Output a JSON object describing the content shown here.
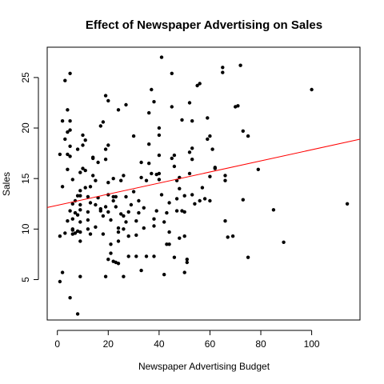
{
  "chart_data": {
    "type": "scatter",
    "title": "Effect of Newspaper Advertising on Sales",
    "xlabel": "Newspaper Advertising Budget",
    "ylabel": "Sales",
    "xlim": [
      -4,
      119
    ],
    "ylim": [
      1.0,
      28.0
    ],
    "x_ticks": [
      0,
      20,
      40,
      60,
      80,
      100
    ],
    "y_ticks": [
      5,
      10,
      15,
      20,
      25
    ],
    "grid": false,
    "legend": "none",
    "point_color": "#000000",
    "regression_line": {
      "intercept": 12.35,
      "slope": 0.055,
      "color": "#ff0000"
    },
    "points": [
      [
        1,
        17.4
      ],
      [
        2,
        20.7
      ],
      [
        2,
        14.2
      ],
      [
        3,
        18.9
      ],
      [
        3,
        24.7
      ],
      [
        4,
        21.8
      ],
      [
        4,
        19.6
      ],
      [
        5,
        25.4
      ],
      [
        4,
        17.4
      ],
      [
        4,
        15.9
      ],
      [
        5,
        20.7
      ],
      [
        5,
        19.8
      ],
      [
        5,
        18.2
      ],
      [
        5,
        17.2
      ],
      [
        6,
        14.9
      ],
      [
        6,
        12.5
      ],
      [
        5,
        11.8
      ],
      [
        6,
        11.0
      ],
      [
        4,
        10.8
      ],
      [
        6,
        10.0
      ],
      [
        6,
        9.9
      ],
      [
        6,
        9.5
      ],
      [
        7,
        9.6
      ],
      [
        8,
        9.8
      ],
      [
        7,
        11.6
      ],
      [
        7,
        12.8
      ],
      [
        8,
        13.3
      ],
      [
        8,
        11.4
      ],
      [
        9,
        11.9
      ],
      [
        9,
        10.7
      ],
      [
        9,
        9.7
      ],
      [
        9,
        8.8
      ],
      [
        9,
        12.4
      ],
      [
        9,
        13.3
      ],
      [
        9,
        13.8
      ],
      [
        9,
        15.6
      ],
      [
        8,
        17.9
      ],
      [
        10,
        18.3
      ],
      [
        10,
        16.0
      ],
      [
        11,
        18.8
      ],
      [
        11,
        14.1
      ],
      [
        12,
        13.2
      ],
      [
        12,
        11.7
      ],
      [
        12,
        10.9
      ],
      [
        12,
        10.0
      ],
      [
        13,
        12.6
      ],
      [
        14,
        15.3
      ],
      [
        14,
        17.0
      ],
      [
        13,
        9.5
      ],
      [
        15,
        14.8
      ],
      [
        15,
        10.2
      ],
      [
        16,
        13.1
      ],
      [
        17,
        20.2
      ],
      [
        17,
        12.0
      ],
      [
        18,
        9.5
      ],
      [
        18,
        11.3
      ],
      [
        19,
        12.2
      ],
      [
        19,
        16.9
      ],
      [
        19,
        17.9
      ],
      [
        19,
        23.2
      ],
      [
        20,
        22.7
      ],
      [
        20,
        18.3
      ],
      [
        20,
        14.6
      ],
      [
        20,
        13.4
      ],
      [
        20,
        11.7
      ],
      [
        21,
        10.9
      ],
      [
        21,
        8.5
      ],
      [
        21,
        7.6
      ],
      [
        22,
        12.8
      ],
      [
        22,
        15.0
      ],
      [
        23,
        13.2
      ],
      [
        23,
        12.2
      ],
      [
        24,
        9.7
      ],
      [
        24,
        8.8
      ],
      [
        24,
        6.6
      ],
      [
        25,
        11.5
      ],
      [
        25,
        14.8
      ],
      [
        26,
        15.3
      ],
      [
        26,
        11.3
      ],
      [
        27,
        13.2
      ],
      [
        27,
        10.7
      ],
      [
        28,
        9.3
      ],
      [
        29,
        12.4
      ],
      [
        30,
        13.7
      ],
      [
        31,
        10.8
      ],
      [
        31,
        9.4
      ],
      [
        32,
        11.6
      ],
      [
        32,
        12.8
      ],
      [
        33,
        15.1
      ],
      [
        33,
        16.6
      ],
      [
        34,
        12.1
      ],
      [
        34,
        10.1
      ],
      [
        35,
        14.8
      ],
      [
        36,
        21.5
      ],
      [
        36,
        18.4
      ],
      [
        37,
        15.5
      ],
      [
        38,
        11.0
      ],
      [
        38,
        10.3
      ],
      [
        38,
        7.3
      ],
      [
        39,
        11.8
      ],
      [
        40,
        14.9
      ],
      [
        40,
        15.5
      ],
      [
        40,
        17.3
      ],
      [
        40,
        19.3
      ],
      [
        40,
        20.0
      ],
      [
        41,
        13.4
      ],
      [
        42,
        10.7
      ],
      [
        43,
        11.6
      ],
      [
        43,
        8.5
      ],
      [
        44,
        9.7
      ],
      [
        44,
        12.6
      ],
      [
        45,
        17.0
      ],
      [
        45,
        22.1
      ],
      [
        45,
        25.4
      ],
      [
        46,
        16.2
      ],
      [
        46,
        17.3
      ],
      [
        47,
        14.8
      ],
      [
        47,
        13.0
      ],
      [
        47,
        11.8
      ],
      [
        48,
        14.0
      ],
      [
        48,
        15.1
      ],
      [
        49,
        20.8
      ],
      [
        49,
        11.8
      ],
      [
        50,
        11.7
      ],
      [
        50,
        13.3
      ],
      [
        50,
        9.3
      ],
      [
        51,
        7.0
      ],
      [
        51,
        6.7
      ],
      [
        52,
        15.5
      ],
      [
        52,
        17.6
      ],
      [
        52,
        22.5
      ],
      [
        53,
        20.7
      ],
      [
        53,
        16.9
      ],
      [
        53,
        13.4
      ],
      [
        54,
        12.5
      ],
      [
        55,
        24.2
      ],
      [
        56,
        24.4
      ],
      [
        56,
        12.8
      ],
      [
        57,
        14.1
      ],
      [
        58,
        13.0
      ],
      [
        59,
        21.0
      ],
      [
        59,
        18.9
      ],
      [
        60,
        19.2
      ],
      [
        60,
        15.2
      ],
      [
        60,
        12.8
      ],
      [
        61,
        17.9
      ],
      [
        62,
        16.1
      ],
      [
        65,
        26.0
      ],
      [
        65,
        25.5
      ],
      [
        66,
        14.8
      ],
      [
        66,
        15.3
      ],
      [
        66,
        10.8
      ],
      [
        67,
        9.2
      ],
      [
        69,
        9.3
      ],
      [
        70,
        22.1
      ],
      [
        71,
        22.2
      ],
      [
        72,
        26.2
      ],
      [
        73,
        12.9
      ],
      [
        73,
        19.7
      ],
      [
        75,
        19.2
      ],
      [
        75,
        7.2
      ],
      [
        79,
        15.9
      ],
      [
        85,
        11.9
      ],
      [
        89,
        8.7
      ],
      [
        100,
        23.8
      ],
      [
        114,
        12.5
      ],
      [
        41,
        27.0
      ],
      [
        42,
        5.5
      ],
      [
        50,
        5.7
      ],
      [
        46,
        7.2
      ],
      [
        38,
        22.6
      ],
      [
        37,
        23.8
      ],
      [
        30,
        19.2
      ],
      [
        27,
        22.3
      ],
      [
        24,
        21.8
      ],
      [
        18,
        20.6
      ],
      [
        16,
        16.6
      ],
      [
        14,
        17.1
      ],
      [
        11,
        15.8
      ],
      [
        10,
        19.3
      ],
      [
        3,
        9.6
      ],
      [
        1,
        9.3
      ],
      [
        1,
        4.8
      ],
      [
        2,
        5.7
      ],
      [
        5,
        3.2
      ],
      [
        8,
        1.6
      ],
      [
        9,
        5.3
      ],
      [
        19,
        5.3
      ],
      [
        20,
        7.0
      ],
      [
        22,
        6.8
      ],
      [
        23,
        6.7
      ],
      [
        26,
        5.3
      ],
      [
        28,
        7.3
      ],
      [
        31,
        7.3
      ],
      [
        33,
        5.9
      ],
      [
        35,
        7.3
      ],
      [
        44,
        8.5
      ],
      [
        48,
        9.1
      ],
      [
        53,
        18.0
      ],
      [
        62,
        16.0
      ],
      [
        28,
        11.7
      ],
      [
        26,
        10.0
      ],
      [
        24,
        10.1
      ],
      [
        22,
        13.2
      ],
      [
        17,
        11.8
      ],
      [
        15,
        12.4
      ],
      [
        13,
        14.2
      ],
      [
        36,
        16.5
      ],
      [
        39,
        15.4
      ]
    ]
  }
}
